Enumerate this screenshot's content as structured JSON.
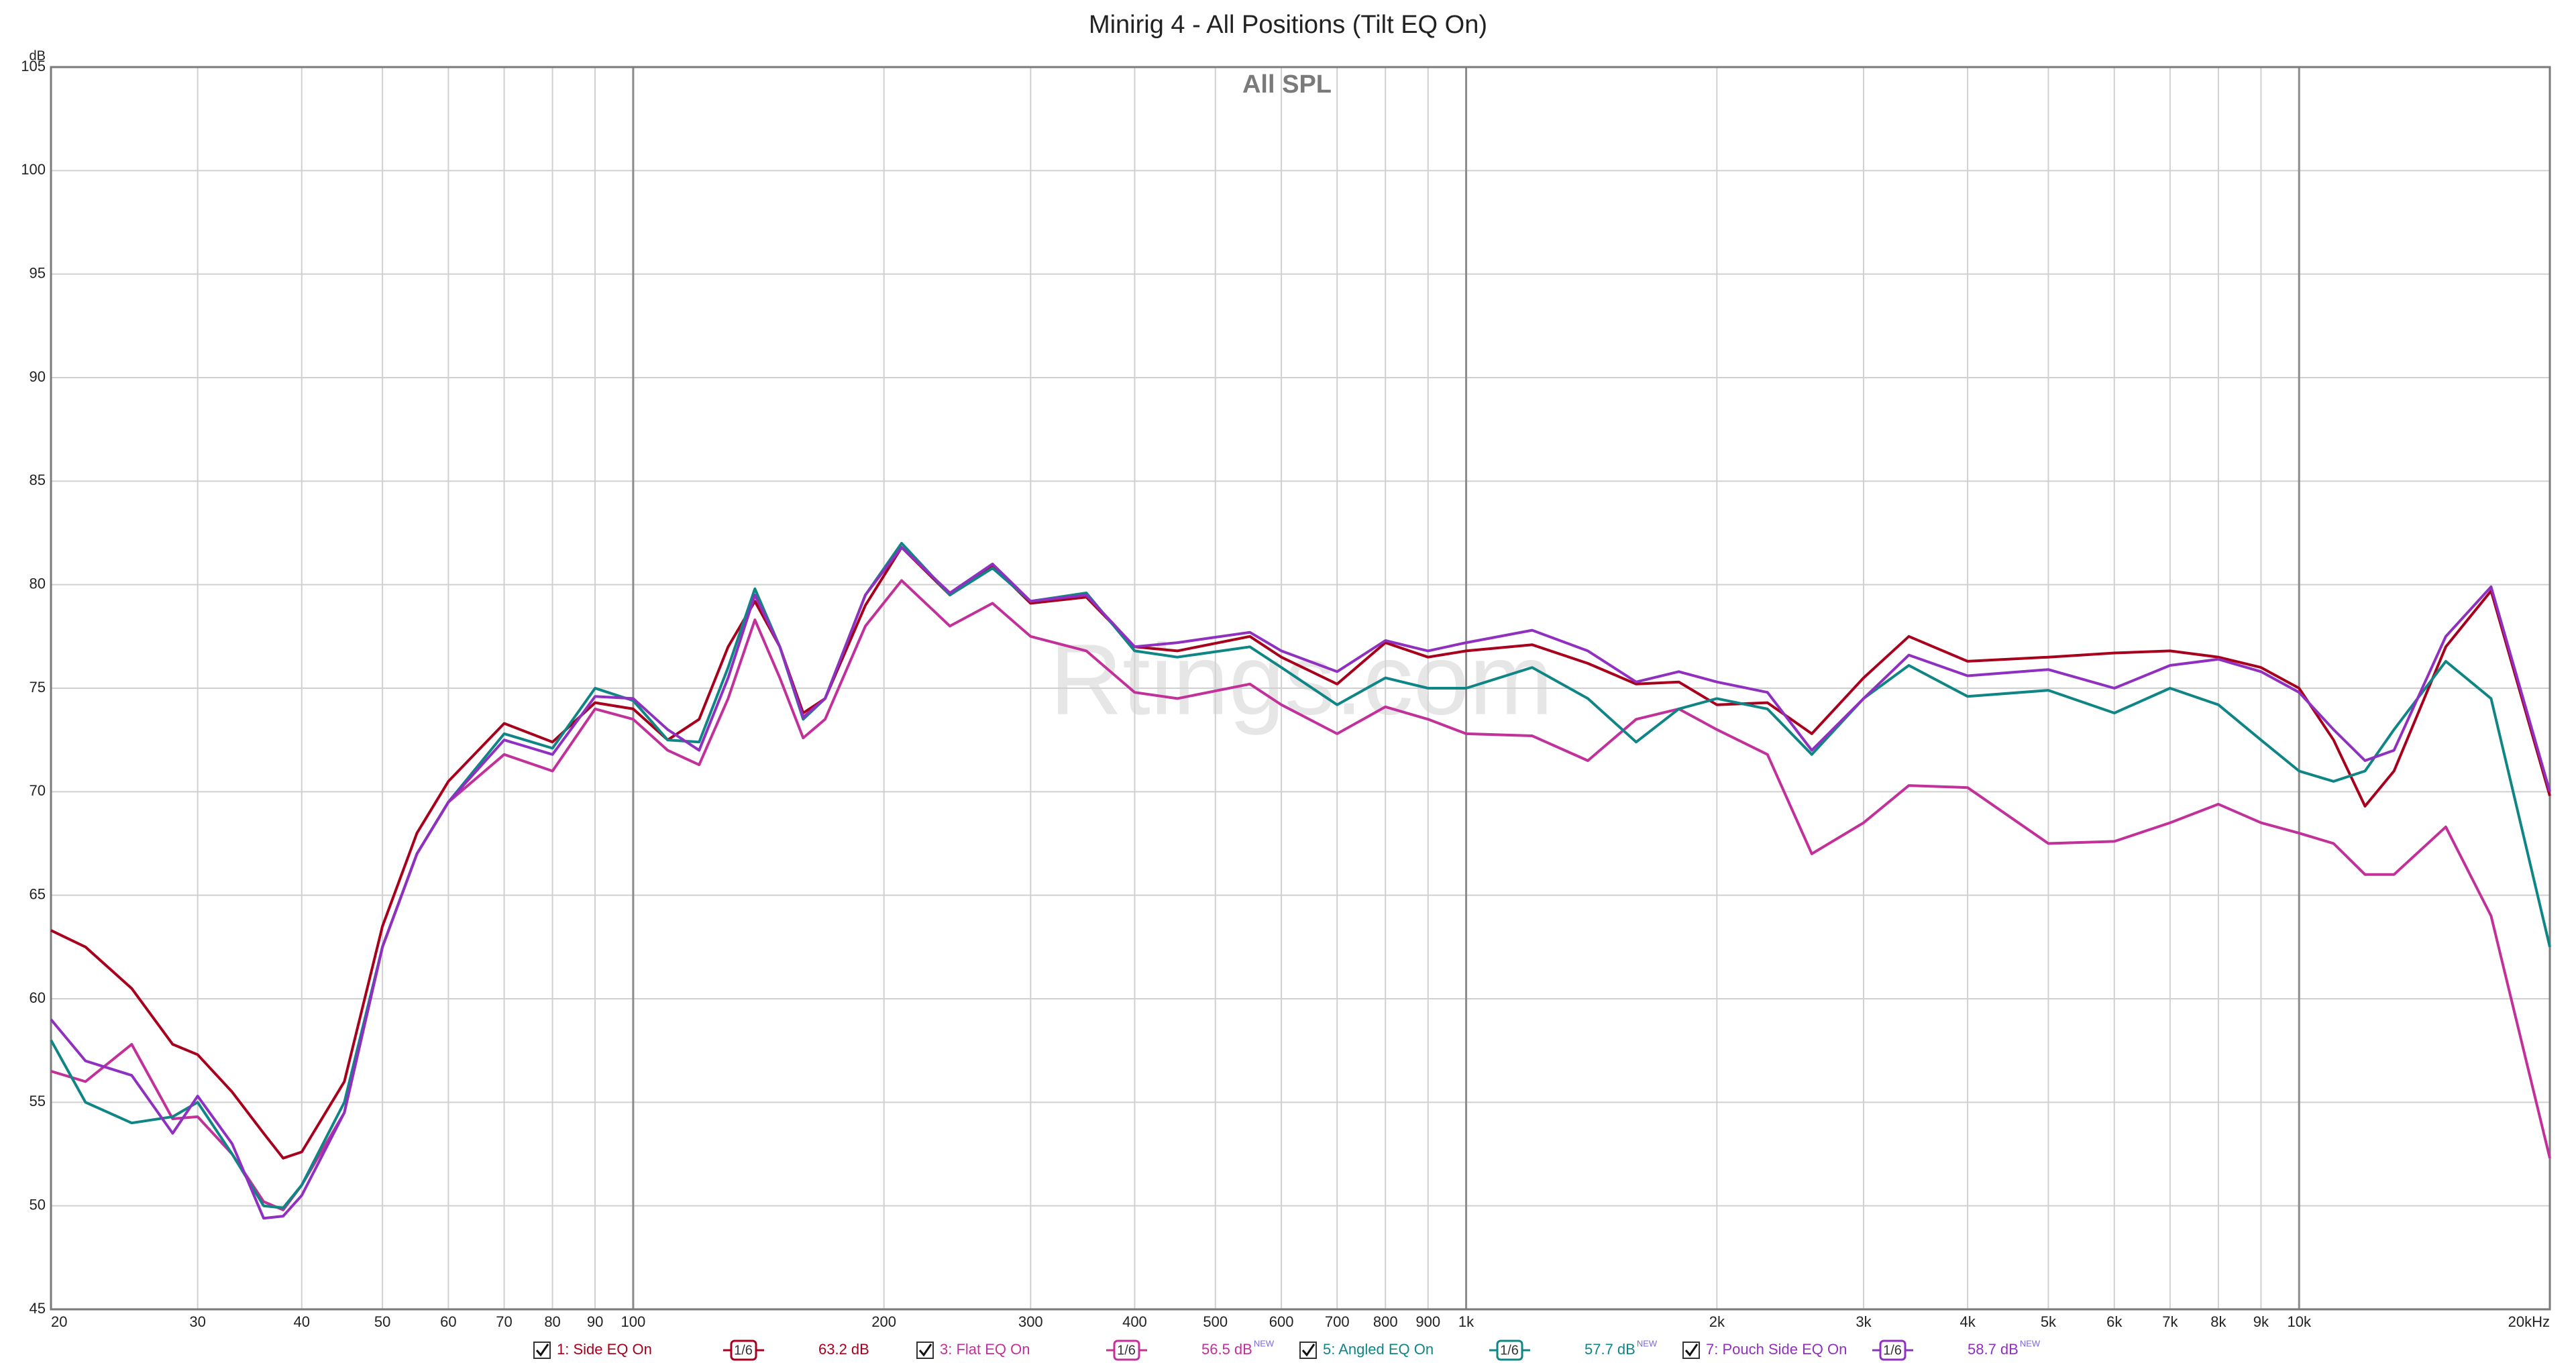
{
  "chart_data": {
    "type": "line",
    "title": "Minirig 4 - All Positions (Tilt EQ On)",
    "subtitle": "All SPL",
    "watermark": "Rtings.com",
    "y_unit": "dB",
    "log_x": true,
    "grid": true,
    "xlim": [
      20,
      20000
    ],
    "ylim": [
      45,
      105
    ],
    "yticks": [
      45,
      50,
      55,
      60,
      65,
      70,
      75,
      80,
      85,
      90,
      95,
      100,
      105
    ],
    "xticks": [
      20,
      30,
      40,
      50,
      60,
      70,
      80,
      90,
      100,
      200,
      300,
      400,
      500,
      600,
      700,
      800,
      900,
      {
        "value": 1000,
        "label": "1k"
      },
      {
        "value": 2000,
        "label": "2k"
      },
      {
        "value": 3000,
        "label": "3k"
      },
      {
        "value": 4000,
        "label": "4k"
      },
      {
        "value": 5000,
        "label": "5k"
      },
      {
        "value": 6000,
        "label": "6k"
      },
      {
        "value": 7000,
        "label": "7k"
      },
      {
        "value": 8000,
        "label": "8k"
      },
      {
        "value": 9000,
        "label": "9k"
      },
      {
        "value": 10000,
        "label": "10k"
      },
      {
        "value": 20000,
        "label": "20kHz"
      }
    ],
    "x": [
      20,
      22,
      25,
      28,
      30,
      33,
      36,
      38,
      40,
      45,
      50,
      55,
      60,
      70,
      80,
      90,
      100,
      110,
      120,
      130,
      140,
      150,
      160,
      170,
      190,
      210,
      240,
      270,
      300,
      350,
      400,
      450,
      550,
      600,
      700,
      800,
      900,
      1000,
      1200,
      1400,
      1600,
      1800,
      2000,
      2300,
      2600,
      3000,
      3400,
      4000,
      5000,
      6000,
      7000,
      8000,
      9000,
      10000,
      11000,
      12000,
      13000,
      15000,
      17000,
      20000
    ],
    "series": [
      {
        "name": "1: Side EQ On",
        "color": "#a8001c",
        "smoothing": "1/6",
        "level": "63.2 dB",
        "values": [
          63.3,
          62.5,
          60.5,
          57.8,
          57.3,
          55.5,
          53.5,
          52.3,
          52.6,
          56,
          63.5,
          68,
          70.5,
          73.3,
          72.4,
          74.3,
          74,
          72.5,
          73.5,
          77,
          79.2,
          77,
          73.8,
          74.5,
          79,
          81.8,
          79.5,
          80.9,
          79.1,
          79.4,
          77,
          76.8,
          77.5,
          76.5,
          75.2,
          77.2,
          76.5,
          76.8,
          77.1,
          76.2,
          75.2,
          75.3,
          74.2,
          74.3,
          72.8,
          75.5,
          77.5,
          76.3,
          76.5,
          76.7,
          76.8,
          76.5,
          76,
          75,
          72.5,
          69.3,
          71,
          77,
          79.7,
          69.8
        ]
      },
      {
        "name": "3: Flat EQ On",
        "color": "#c2309a",
        "smoothing": "1/6",
        "level": "56.5 dB",
        "badge": "NEW",
        "values": [
          56.5,
          56,
          57.8,
          54.2,
          54.3,
          52.5,
          50.2,
          49.8,
          51,
          54.5,
          62.5,
          67,
          69.5,
          71.8,
          71,
          74,
          73.5,
          72,
          71.3,
          74.5,
          78.3,
          75.5,
          72.6,
          73.5,
          78,
          80.2,
          78,
          79.1,
          77.5,
          76.8,
          74.8,
          74.5,
          75.2,
          74.2,
          72.8,
          74.1,
          73.5,
          72.8,
          72.7,
          71.5,
          73.5,
          74,
          73,
          71.8,
          67,
          68.5,
          70.3,
          70.2,
          67.5,
          67.6,
          68.5,
          69.4,
          68.5,
          68,
          67.5,
          66,
          66,
          68.3,
          64,
          52.3
        ]
      },
      {
        "name": "5: Angled EQ On",
        "color": "#108585",
        "smoothing": "1/6",
        "level": "57.7 dB",
        "badge": "NEW",
        "values": [
          58,
          55,
          54,
          54.3,
          55,
          52.5,
          50,
          49.9,
          51,
          55,
          62.5,
          67,
          69.5,
          72.8,
          72.1,
          75,
          74.4,
          72.5,
          72.4,
          76,
          79.8,
          77,
          73.5,
          74.5,
          79.5,
          82,
          79.5,
          80.8,
          79.2,
          79.6,
          76.8,
          76.5,
          77,
          76,
          74.2,
          75.5,
          75,
          75,
          76,
          74.5,
          72.4,
          74,
          74.5,
          74,
          71.8,
          74.5,
          76.1,
          74.6,
          74.9,
          73.8,
          75,
          74.2,
          72.5,
          71,
          70.5,
          71,
          73,
          76.3,
          74.5,
          62.5
        ]
      },
      {
        "name": "7: Pouch Side EQ On",
        "color": "#9030c0",
        "smoothing": "1/6",
        "level": "58.7 dB",
        "badge": "NEW",
        "values": [
          59,
          57,
          56.3,
          53.5,
          55.3,
          53,
          49.4,
          49.5,
          50.5,
          54.5,
          62.5,
          67,
          69.5,
          72.5,
          71.8,
          74.6,
          74.5,
          73,
          72,
          75.5,
          79.5,
          77,
          73.6,
          74.5,
          79.5,
          81.8,
          79.6,
          81,
          79.2,
          79.5,
          77,
          77.2,
          77.7,
          76.8,
          75.8,
          77.3,
          76.8,
          77.2,
          77.8,
          76.8,
          75.3,
          75.8,
          75.3,
          74.8,
          72,
          74.5,
          76.6,
          75.6,
          75.9,
          75,
          76.1,
          76.4,
          75.8,
          74.8,
          73,
          71.5,
          72,
          77.5,
          79.9,
          70
        ]
      }
    ]
  }
}
